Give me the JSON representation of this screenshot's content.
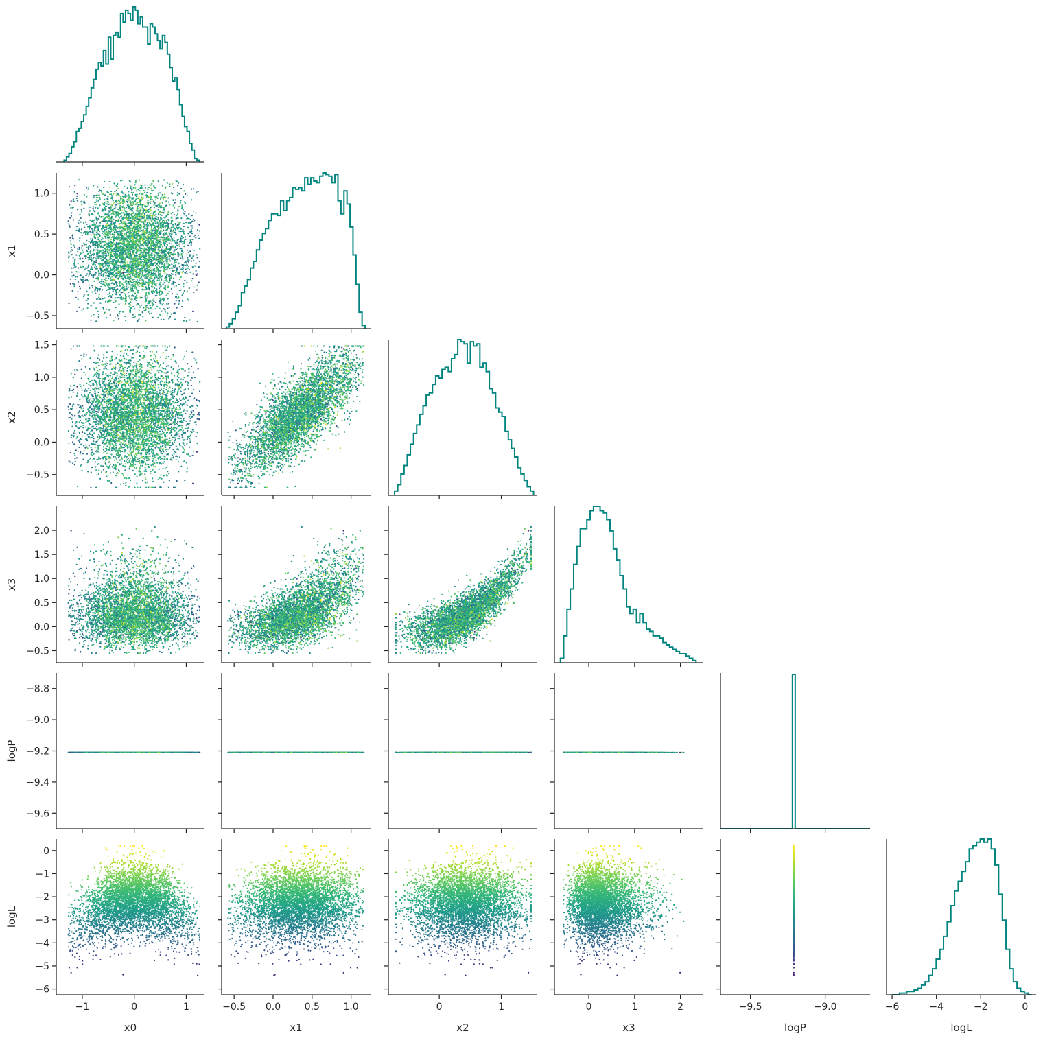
{
  "chart_data": {
    "type": "pairplot",
    "layout": "corner",
    "variables": [
      "x0",
      "x1",
      "x2",
      "x3",
      "logP",
      "logL"
    ],
    "axis_labels": [
      "x0",
      "x1",
      "x2",
      "x3",
      "logP",
      "logL"
    ],
    "ranges": {
      "x0": [
        -1.5,
        1.35
      ],
      "x1": [
        -0.66,
        1.25
      ],
      "x2": [
        -0.82,
        1.58
      ],
      "x3": [
        -0.75,
        2.5
      ],
      "logP": [
        -9.7,
        -8.7
      ],
      "logL": [
        -6.25,
        0.5
      ]
    },
    "ticks": {
      "x0": [
        -1,
        0,
        1
      ],
      "x1": [
        -0.5,
        0.0,
        0.5,
        1.0
      ],
      "x2": [
        0,
        1
      ],
      "x3": [
        0,
        1,
        2
      ],
      "logP": [
        -9.5,
        -9.0
      ],
      "logL": [
        -6,
        -4,
        -2,
        0
      ]
    },
    "x_tick_labels": {
      "x0": [
        "−1",
        "0",
        "1"
      ],
      "x1": [
        "−0.5",
        "0.0",
        "0.5",
        "1.0"
      ],
      "x2": [
        "0",
        "1"
      ],
      "x3": [
        "0",
        "1",
        "2"
      ],
      "logP": [
        "−9.5",
        "−9.0"
      ],
      "logL": [
        "−6",
        "−4",
        "−2",
        "0"
      ]
    },
    "y_ticks": {
      "x1": [
        -0.5,
        0.0,
        0.5,
        1.0
      ],
      "x2": [
        -0.5,
        0.0,
        0.5,
        1.0,
        1.5
      ],
      "x3": [
        -0.5,
        0.0,
        0.5,
        1.0,
        1.5,
        2.0
      ],
      "logP": [
        -9.6,
        -9.4,
        -9.2,
        -9.0,
        -8.8
      ],
      "logL": [
        -6,
        -5,
        -4,
        -3,
        -2,
        -1,
        0
      ]
    },
    "y_tick_labels": {
      "x1": [
        "−0.5",
        "0.0",
        "0.5",
        "1.0"
      ],
      "x2": [
        "−0.5",
        "0.0",
        "0.5",
        "1.0",
        "1.5"
      ],
      "x3": [
        "−0.5",
        "0.0",
        "0.5",
        "1.0",
        "1.5",
        "2.0"
      ],
      "logP": [
        "−9.6",
        "−9.4",
        "−9.2",
        "−9.0",
        "−8.8"
      ],
      "logL": [
        "−6",
        "−5",
        "−4",
        "−3",
        "−2",
        "−1",
        "0"
      ]
    },
    "marginals": {
      "x0": {
        "edges": [
          -1.35,
          1.25
        ],
        "counts": [
          1,
          3,
          5,
          9,
          12,
          18,
          20,
          24,
          28,
          33,
          38,
          44,
          49,
          55,
          59,
          57,
          66,
          58,
          74,
          61,
          75,
          77,
          74,
          88,
          83,
          90,
          88,
          84,
          92,
          90,
          82,
          86,
          80,
          80,
          70,
          82,
          80,
          76,
          72,
          67,
          75,
          71,
          64,
          56,
          48,
          50,
          43,
          34,
          27,
          21,
          18,
          11,
          7,
          2,
          1
        ]
      },
      "x1": {
        "edges": [
          -0.6,
          1.18
        ],
        "counts": [
          1,
          3,
          6,
          10,
          14,
          22,
          26,
          30,
          37,
          41,
          48,
          54,
          58,
          61,
          66,
          70,
          70,
          69,
          78,
          72,
          78,
          80,
          86,
          85,
          86,
          84,
          92,
          88,
          92,
          90,
          89,
          93,
          95,
          94,
          93,
          89,
          94,
          78,
          70,
          84,
          76,
          62,
          45,
          27,
          10,
          2
        ]
      },
      "x2": {
        "edges": [
          -0.72,
          1.52
        ],
        "counts": [
          2,
          5,
          10,
          14,
          19,
          24,
          29,
          33,
          38,
          42,
          47,
          48,
          52,
          56,
          55,
          59,
          60,
          58,
          64,
          66,
          73,
          72,
          71,
          62,
          72,
          70,
          71,
          60,
          62,
          58,
          50,
          48,
          41,
          39,
          37,
          30,
          26,
          22,
          18,
          13,
          10,
          7,
          4,
          2
        ]
      },
      "x3": {
        "edges": [
          -0.62,
          2.34
        ],
        "counts": [
          2,
          12,
          24,
          33,
          44,
          52,
          60,
          60,
          64,
          68,
          70,
          70,
          68,
          67,
          64,
          59,
          51,
          46,
          39,
          33,
          25,
          22,
          24,
          18,
          22,
          18,
          15,
          14,
          12,
          12,
          11,
          9,
          8,
          7,
          6,
          5,
          4,
          4,
          3,
          2,
          1
        ]
      },
      "logP": {
        "center": -9.21,
        "count": 1
      },
      "logL": {
        "edges": [
          -6.0,
          0.3
        ],
        "counts": [
          0,
          0,
          1,
          1,
          2,
          2,
          3,
          4,
          6,
          8,
          12,
          16,
          22,
          28,
          36,
          45,
          55,
          64,
          70,
          76,
          82,
          90,
          92,
          94,
          96,
          94,
          96,
          90,
          80,
          62,
          46,
          28,
          16,
          8,
          4,
          2,
          1,
          0
        ]
      }
    },
    "pairs": [
      {
        "x": "x0",
        "y": "x1",
        "relation": "uncorrelated",
        "x_range": [
          -1.3,
          1.2
        ],
        "y_range": [
          -0.58,
          1.16
        ]
      },
      {
        "x": "x0",
        "y": "x2",
        "relation": "uncorrelated",
        "x_range": [
          -1.3,
          1.25
        ],
        "y_range": [
          -0.72,
          1.48
        ]
      },
      {
        "x": "x1",
        "y": "x2",
        "relation": "positive",
        "x_range": [
          -0.58,
          1.18
        ],
        "y_range": [
          -0.72,
          1.48
        ]
      },
      {
        "x": "x0",
        "y": "x3",
        "relation": "skewed",
        "x_range": [
          -1.3,
          1.25
        ],
        "y_range": [
          -0.55,
          2.35
        ]
      },
      {
        "x": "x1",
        "y": "x3",
        "relation": "positive-curved",
        "x_range": [
          -0.58,
          1.18
        ],
        "y_range": [
          -0.55,
          2.35
        ]
      },
      {
        "x": "x2",
        "y": "x3",
        "relation": "positive-curved",
        "x_range": [
          -0.72,
          1.52
        ],
        "y_range": [
          -0.55,
          2.35
        ]
      },
      {
        "x": "x0",
        "y": "logP",
        "relation": "constant",
        "value": -9.21
      },
      {
        "x": "x1",
        "y": "logP",
        "relation": "constant",
        "value": -9.21
      },
      {
        "x": "x2",
        "y": "logP",
        "relation": "constant",
        "value": -9.21
      },
      {
        "x": "x3",
        "y": "logP",
        "relation": "constant",
        "value": -9.21
      },
      {
        "x": "x0",
        "y": "logL",
        "relation": "peaked",
        "y_range": [
          -6.0,
          0.2
        ]
      },
      {
        "x": "x1",
        "y": "logL",
        "relation": "weak-positive",
        "y_range": [
          -6.0,
          0.2
        ]
      },
      {
        "x": "x2",
        "y": "logL",
        "relation": "peaked",
        "y_range": [
          -6.0,
          0.2
        ]
      },
      {
        "x": "x3",
        "y": "logL",
        "relation": "negative",
        "y_range": [
          -6.0,
          0.2
        ]
      },
      {
        "x": "logP",
        "y": "logL",
        "relation": "constant-x",
        "value": -9.21,
        "y_range": [
          -6.0,
          0.2
        ]
      }
    ],
    "color_by": "logL",
    "colormap": "viridis",
    "histogram_color": "#00847f",
    "grid": false,
    "legend": "none"
  }
}
